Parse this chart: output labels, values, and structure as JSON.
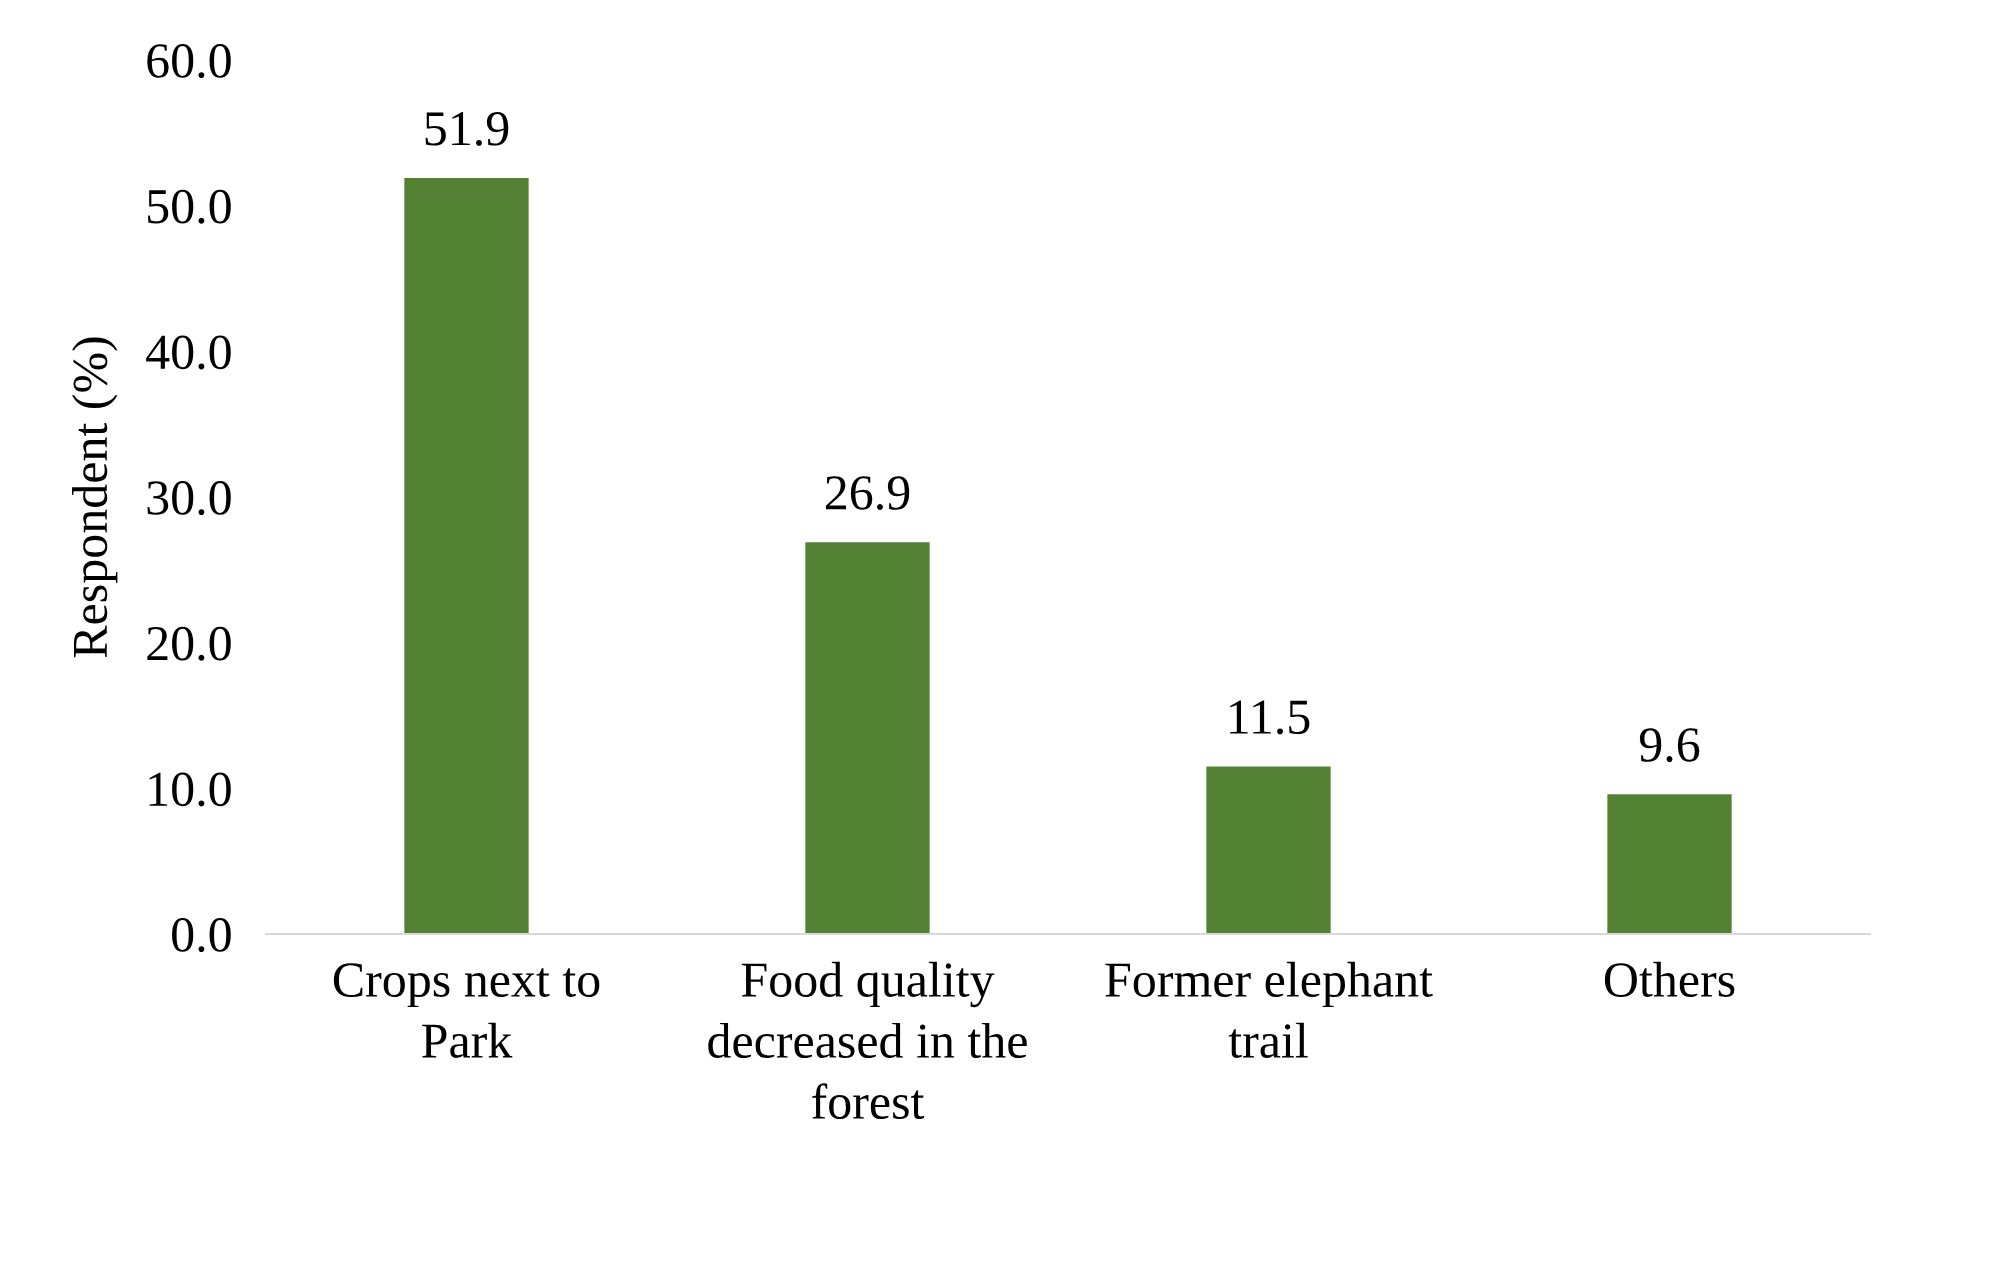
{
  "chart_data": {
    "type": "bar",
    "ylabel": "Respondent (%)",
    "categories": [
      "Crops next to\nPark",
      "Food quality\ndecreased in the\nforest",
      "Former elephant\ntrail",
      "Others"
    ],
    "values": [
      51.9,
      26.9,
      11.5,
      9.6
    ],
    "color": "#548235",
    "data_labels": true,
    "ylim": [
      0,
      60
    ],
    "yticks": [
      {
        "value": 0,
        "label": "0.0"
      },
      {
        "value": 10,
        "label": "10.0"
      },
      {
        "value": 20,
        "label": "20.0"
      },
      {
        "value": 30,
        "label": "30.0"
      },
      {
        "value": 40,
        "label": "40.0"
      },
      {
        "value": 50,
        "label": "50.0"
      },
      {
        "value": 60,
        "label": "60.0"
      }
    ],
    "grid": false,
    "legend": false
  }
}
